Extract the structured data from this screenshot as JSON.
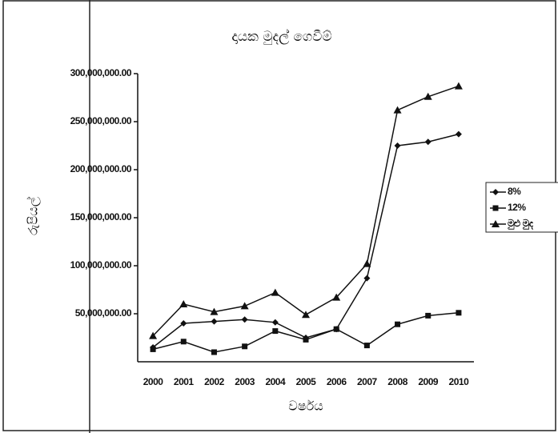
{
  "chart_data": {
    "type": "line",
    "title": "දායක මුදල් ගෙවීම්",
    "x_label": "වර්ෂය",
    "y_label": "රුපියල්",
    "categories": [
      "2000",
      "2001",
      "2002",
      "2003",
      "2004",
      "2005",
      "2006",
      "2007",
      "2008",
      "2009",
      "2010"
    ],
    "series": [
      {
        "name": "8%",
        "color": "#111111",
        "marker": "diamond",
        "values": [
          15000000,
          40000000,
          42000000,
          44000000,
          41000000,
          25000000,
          34000000,
          87000000,
          225000000,
          229000000,
          237000000
        ]
      },
      {
        "name": "12%",
        "color": "#111111",
        "marker": "square",
        "values": [
          13000000,
          21000000,
          10000000,
          16000000,
          32000000,
          23000000,
          34000000,
          17000000,
          39000000,
          48000000,
          51000000
        ]
      },
      {
        "name": "මුළු මුද",
        "color": "#111111",
        "marker": "triangle",
        "values": [
          27000000,
          60000000,
          52000000,
          58000000,
          72000000,
          49000000,
          67000000,
          102000000,
          262000000,
          276000000,
          287000000
        ]
      }
    ],
    "ylim": [
      0,
      300000000
    ],
    "yticks": [
      {
        "value": 50000000,
        "label": "50,000,000.00"
      },
      {
        "value": 100000000,
        "label": "100,000,000.00"
      },
      {
        "value": 150000000,
        "label": "150,000,000.00"
      },
      {
        "value": 200000000,
        "label": "200,000,000.00"
      },
      {
        "value": 250000000,
        "label": "250,000,000.00"
      },
      {
        "value": 300000000,
        "label": "300,000,000.00"
      }
    ],
    "grid": false,
    "legend": "right"
  }
}
